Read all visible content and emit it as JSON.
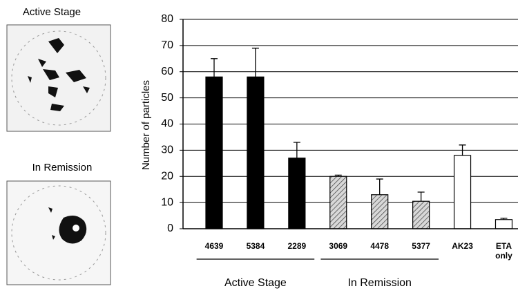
{
  "chart_data": {
    "type": "bar",
    "panel_labels": [
      "Active Stage",
      "In Remission"
    ],
    "y_label": "Number of particles",
    "categories": [
      "4639",
      "5384",
      "2289",
      "3069",
      "4478",
      "5377",
      "AK23",
      "ETA only"
    ],
    "values": [
      58,
      58,
      27,
      20,
      13,
      10.5,
      28,
      3.5
    ],
    "errors": [
      7,
      11,
      6,
      0.5,
      6,
      3.5,
      4,
      0.5
    ],
    "colors": [
      "#000000",
      "#000000",
      "#000000",
      "#bbbbbb",
      "#bbbbbb",
      "#bbbbbb",
      "#ffffff",
      "#ffffff"
    ],
    "hatched": [
      false,
      false,
      false,
      true,
      true,
      true,
      false,
      false
    ],
    "groups": [
      "Active Stage",
      "In Remission"
    ],
    "ylim": [
      0,
      80
    ],
    "yticks": [
      0,
      10,
      20,
      30,
      40,
      50,
      60,
      70,
      80
    ],
    "grid": true
  }
}
